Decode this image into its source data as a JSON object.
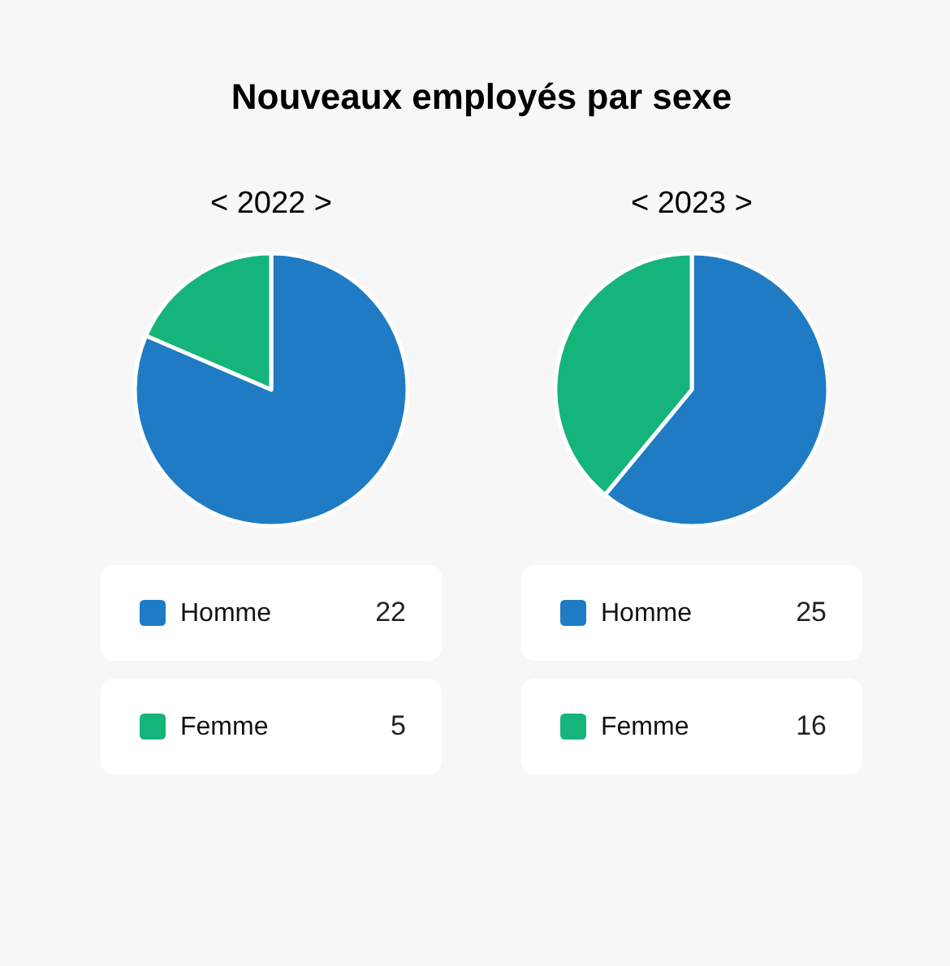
{
  "chart_data": [
    {
      "type": "pie",
      "title": "Nouveaux employés par sexe",
      "subtitle": "< 2022 >",
      "categories": [
        "Homme",
        "Femme"
      ],
      "values": [
        22,
        5
      ],
      "colors": [
        "#1f7bc4",
        "#15b47a"
      ],
      "data_labels": true,
      "legend": "bottom"
    },
    {
      "type": "pie",
      "subtitle": "< 2023 >",
      "categories": [
        "Homme",
        "Femme"
      ],
      "values": [
        25,
        16
      ],
      "colors": [
        "#1f7bc4",
        "#15b47a"
      ],
      "data_labels": true,
      "legend": "bottom"
    }
  ]
}
